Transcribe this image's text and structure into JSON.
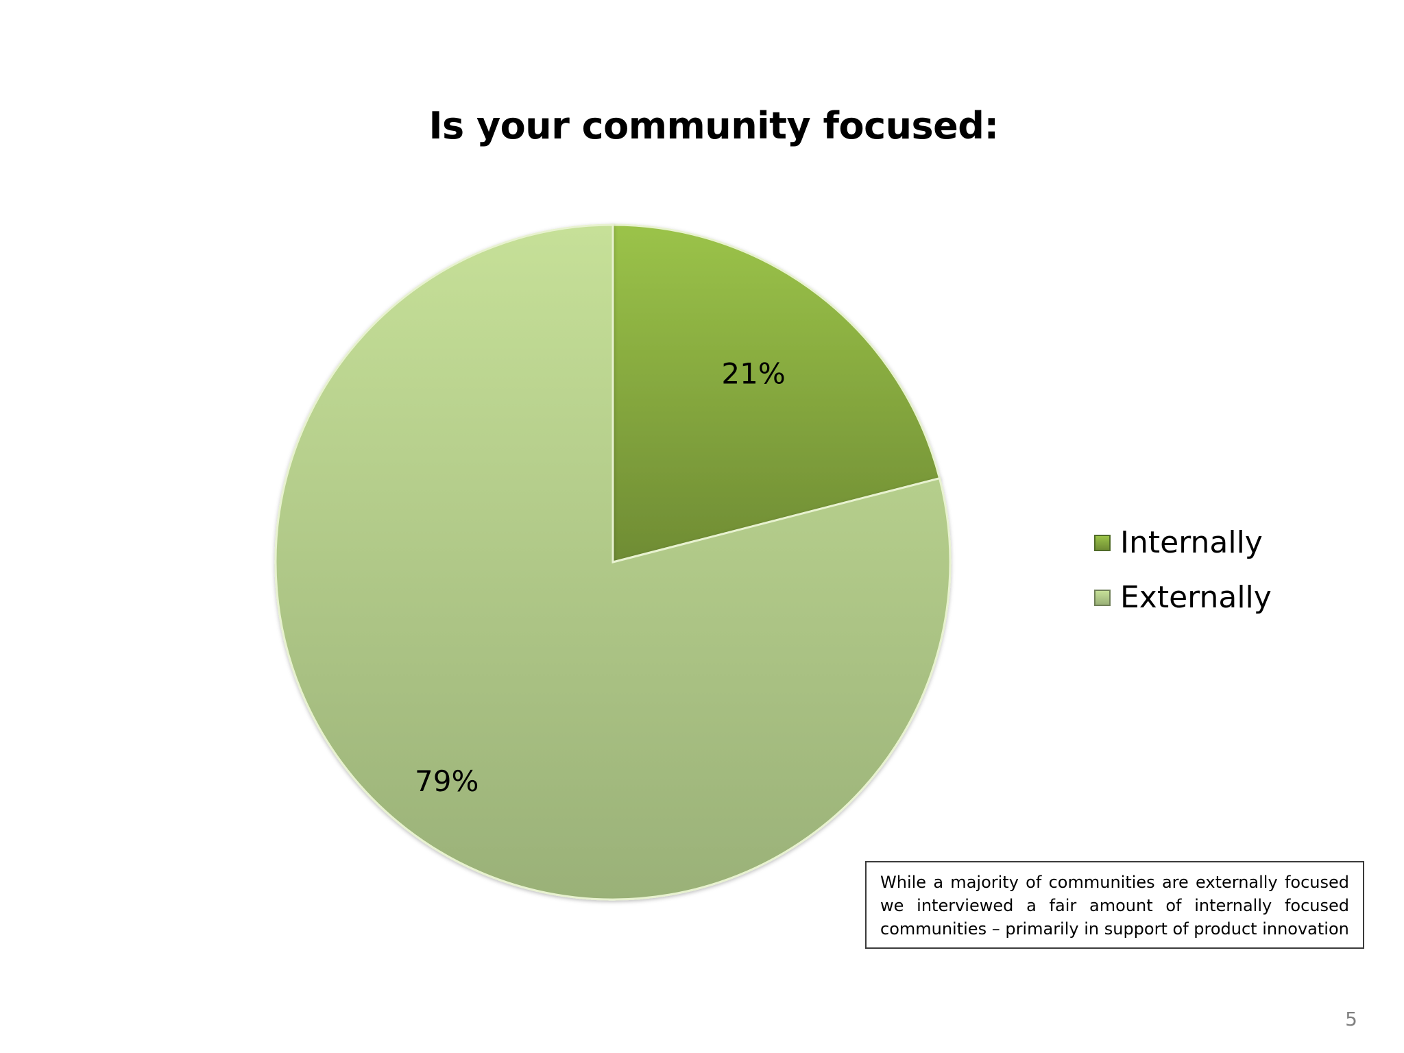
{
  "title": "Is your community focused:",
  "chart_data": {
    "type": "pie",
    "title": "Is your community focused:",
    "categories": [
      "Internally",
      "Externally"
    ],
    "values": [
      21,
      79
    ],
    "data_labels": [
      "21%",
      "79%"
    ],
    "colors": [
      "#7e9f3c",
      "#b1c889"
    ],
    "legend_position": "right"
  },
  "legend": {
    "items": [
      {
        "label": "Internally",
        "color": "#7e9f3c"
      },
      {
        "label": "Externally",
        "color": "#b1c889"
      }
    ]
  },
  "note": "While a majority of communities are externally focused we interviewed a fair amount of internally focused communities – primarily in support of  product innovation",
  "page_number": "5"
}
